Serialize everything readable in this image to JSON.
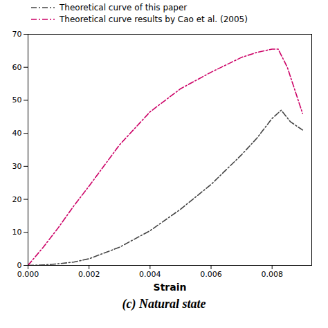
{
  "chart_data": {
    "type": "line",
    "title": "(c) Natural state",
    "xlabel": "Strain",
    "xlim": [
      0.0,
      0.0093
    ],
    "xticks": [
      {
        "value": 0.0,
        "label": "0.000"
      },
      {
        "value": 0.002,
        "label": "0.002"
      },
      {
        "value": 0.004,
        "label": "0.004"
      },
      {
        "value": 0.006,
        "label": "0.006"
      },
      {
        "value": 0.008,
        "label": "0.008"
      }
    ],
    "ylim": [
      0,
      70
    ],
    "yticks": [
      0,
      10,
      20,
      30,
      40,
      50,
      60,
      70
    ],
    "legend": "upper left",
    "grid": false,
    "series": [
      {
        "name": "Theoretical curve of this paper",
        "color": "#444444",
        "line_style": "dashdot",
        "x": [
          0.0,
          0.0002,
          0.0004,
          0.0006,
          0.0008,
          0.001,
          0.0015,
          0.002,
          0.003,
          0.004,
          0.005,
          0.006,
          0.007,
          0.0075,
          0.008,
          0.0083,
          0.0086,
          0.009
        ],
        "values": [
          0.0,
          0.05,
          0.1,
          0.2,
          0.3,
          0.5,
          1.0,
          2.0,
          5.5,
          10.5,
          17.0,
          24.5,
          33.5,
          38.5,
          44.5,
          47.0,
          43.5,
          41.0
        ]
      },
      {
        "name": "Theoretical curve results by Cao et al. (2005)",
        "color": "#cc0066",
        "line_style": "dashdot",
        "x": [
          0.0,
          0.0005,
          0.001,
          0.0015,
          0.002,
          0.003,
          0.004,
          0.005,
          0.006,
          0.007,
          0.0075,
          0.008,
          0.0082,
          0.0085,
          0.009
        ],
        "values": [
          0.0,
          5.5,
          11.5,
          18.0,
          24.0,
          36.5,
          46.5,
          53.5,
          58.5,
          63.0,
          64.5,
          65.5,
          65.5,
          60.0,
          46.0
        ]
      }
    ]
  }
}
